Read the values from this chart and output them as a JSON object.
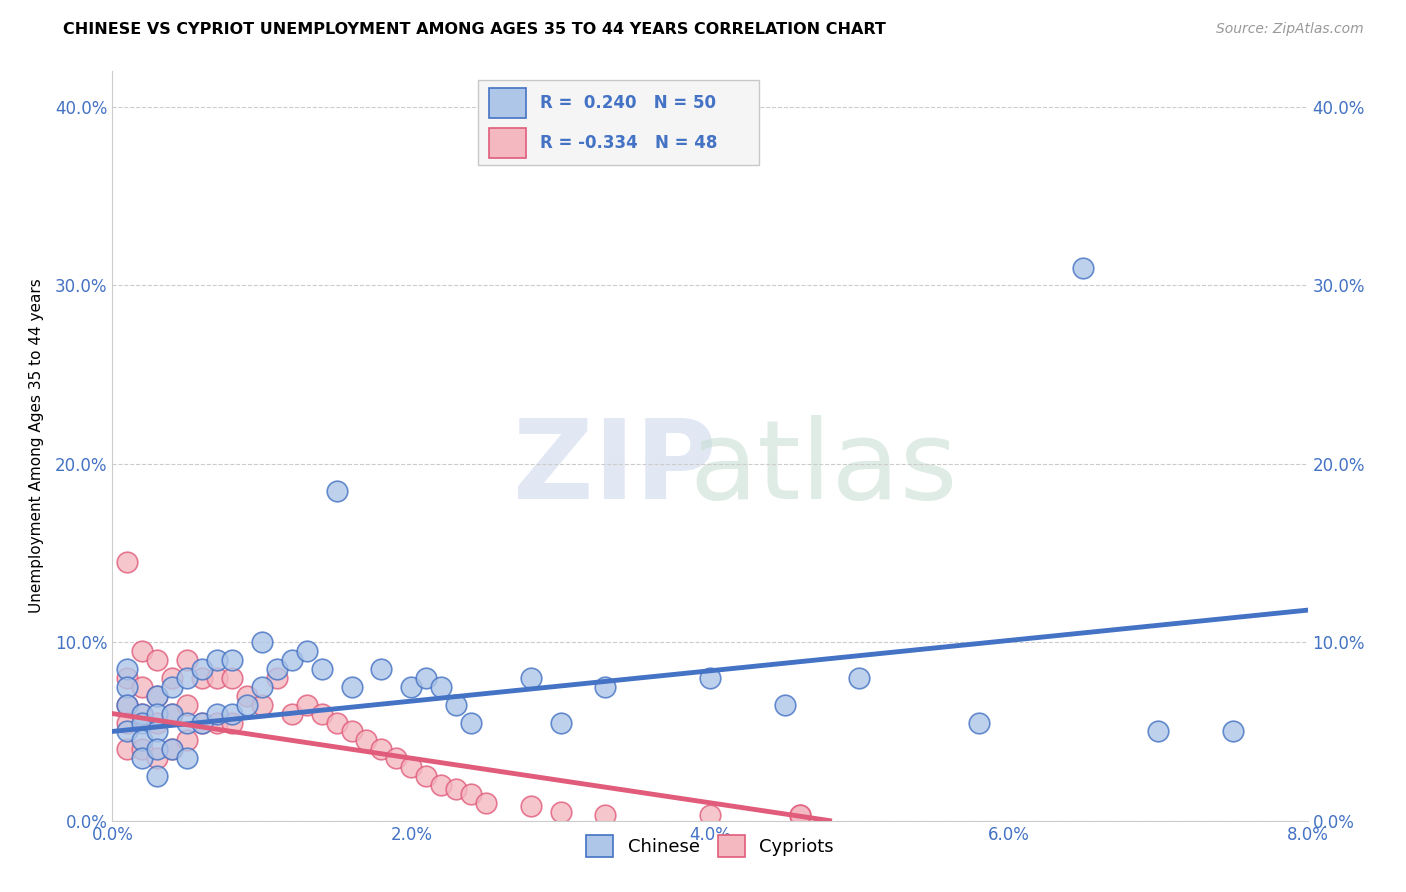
{
  "title": "CHINESE VS CYPRIOT UNEMPLOYMENT AMONG AGES 35 TO 44 YEARS CORRELATION CHART",
  "source": "Source: ZipAtlas.com",
  "ylabel": "Unemployment Among Ages 35 to 44 years",
  "xlim": [
    0.0,
    0.08
  ],
  "ylim": [
    0.0,
    0.42
  ],
  "xticks": [
    0.0,
    0.02,
    0.04,
    0.06,
    0.08
  ],
  "yticks": [
    0.0,
    0.1,
    0.2,
    0.3,
    0.4
  ],
  "chinese_color": "#aec6e8",
  "cypriot_color": "#f4b8c1",
  "chinese_edge_color": "#4472c4",
  "cypriot_edge_color": "#e05c7a",
  "chinese_line_color": "#4472c4",
  "cypriot_line_color": "#e05c7a",
  "chinese_R": 0.24,
  "chinese_N": 50,
  "cypriot_R": -0.334,
  "cypriot_N": 48,
  "grid_color": "#cccccc",
  "chinese_x": [
    0.001,
    0.001,
    0.001,
    0.001,
    0.002,
    0.002,
    0.002,
    0.002,
    0.003,
    0.003,
    0.003,
    0.003,
    0.003,
    0.004,
    0.004,
    0.004,
    0.005,
    0.005,
    0.005,
    0.006,
    0.006,
    0.007,
    0.007,
    0.008,
    0.008,
    0.009,
    0.01,
    0.01,
    0.011,
    0.012,
    0.013,
    0.014,
    0.015,
    0.016,
    0.018,
    0.02,
    0.021,
    0.022,
    0.023,
    0.024,
    0.028,
    0.03,
    0.033,
    0.04,
    0.045,
    0.05,
    0.058,
    0.065,
    0.07,
    0.075
  ],
  "chinese_y": [
    0.085,
    0.075,
    0.065,
    0.05,
    0.06,
    0.055,
    0.045,
    0.035,
    0.07,
    0.06,
    0.05,
    0.04,
    0.025,
    0.075,
    0.06,
    0.04,
    0.08,
    0.055,
    0.035,
    0.085,
    0.055,
    0.09,
    0.06,
    0.09,
    0.06,
    0.065,
    0.1,
    0.075,
    0.085,
    0.09,
    0.095,
    0.085,
    0.185,
    0.075,
    0.085,
    0.075,
    0.08,
    0.075,
    0.065,
    0.055,
    0.08,
    0.055,
    0.075,
    0.08,
    0.065,
    0.08,
    0.055,
    0.31,
    0.05,
    0.05
  ],
  "cypriot_x": [
    0.001,
    0.001,
    0.001,
    0.001,
    0.001,
    0.002,
    0.002,
    0.002,
    0.002,
    0.003,
    0.003,
    0.003,
    0.003,
    0.004,
    0.004,
    0.004,
    0.005,
    0.005,
    0.005,
    0.006,
    0.006,
    0.007,
    0.007,
    0.008,
    0.008,
    0.009,
    0.01,
    0.011,
    0.012,
    0.013,
    0.014,
    0.015,
    0.016,
    0.017,
    0.018,
    0.019,
    0.02,
    0.021,
    0.022,
    0.023,
    0.024,
    0.025,
    0.028,
    0.03,
    0.033,
    0.04,
    0.046,
    0.046
  ],
  "cypriot_y": [
    0.145,
    0.08,
    0.065,
    0.055,
    0.04,
    0.095,
    0.075,
    0.06,
    0.04,
    0.09,
    0.07,
    0.055,
    0.035,
    0.08,
    0.06,
    0.04,
    0.09,
    0.065,
    0.045,
    0.08,
    0.055,
    0.08,
    0.055,
    0.08,
    0.055,
    0.07,
    0.065,
    0.08,
    0.06,
    0.065,
    0.06,
    0.055,
    0.05,
    0.045,
    0.04,
    0.035,
    0.03,
    0.025,
    0.02,
    0.018,
    0.015,
    0.01,
    0.008,
    0.005,
    0.003,
    0.003,
    0.003,
    0.003
  ],
  "line_blue_x0": 0.0,
  "line_blue_y0": 0.05,
  "line_blue_x1": 0.08,
  "line_blue_y1": 0.118,
  "line_pink_x0": 0.0,
  "line_pink_y0": 0.06,
  "line_pink_x1": 0.048,
  "line_pink_y1": 0.0
}
